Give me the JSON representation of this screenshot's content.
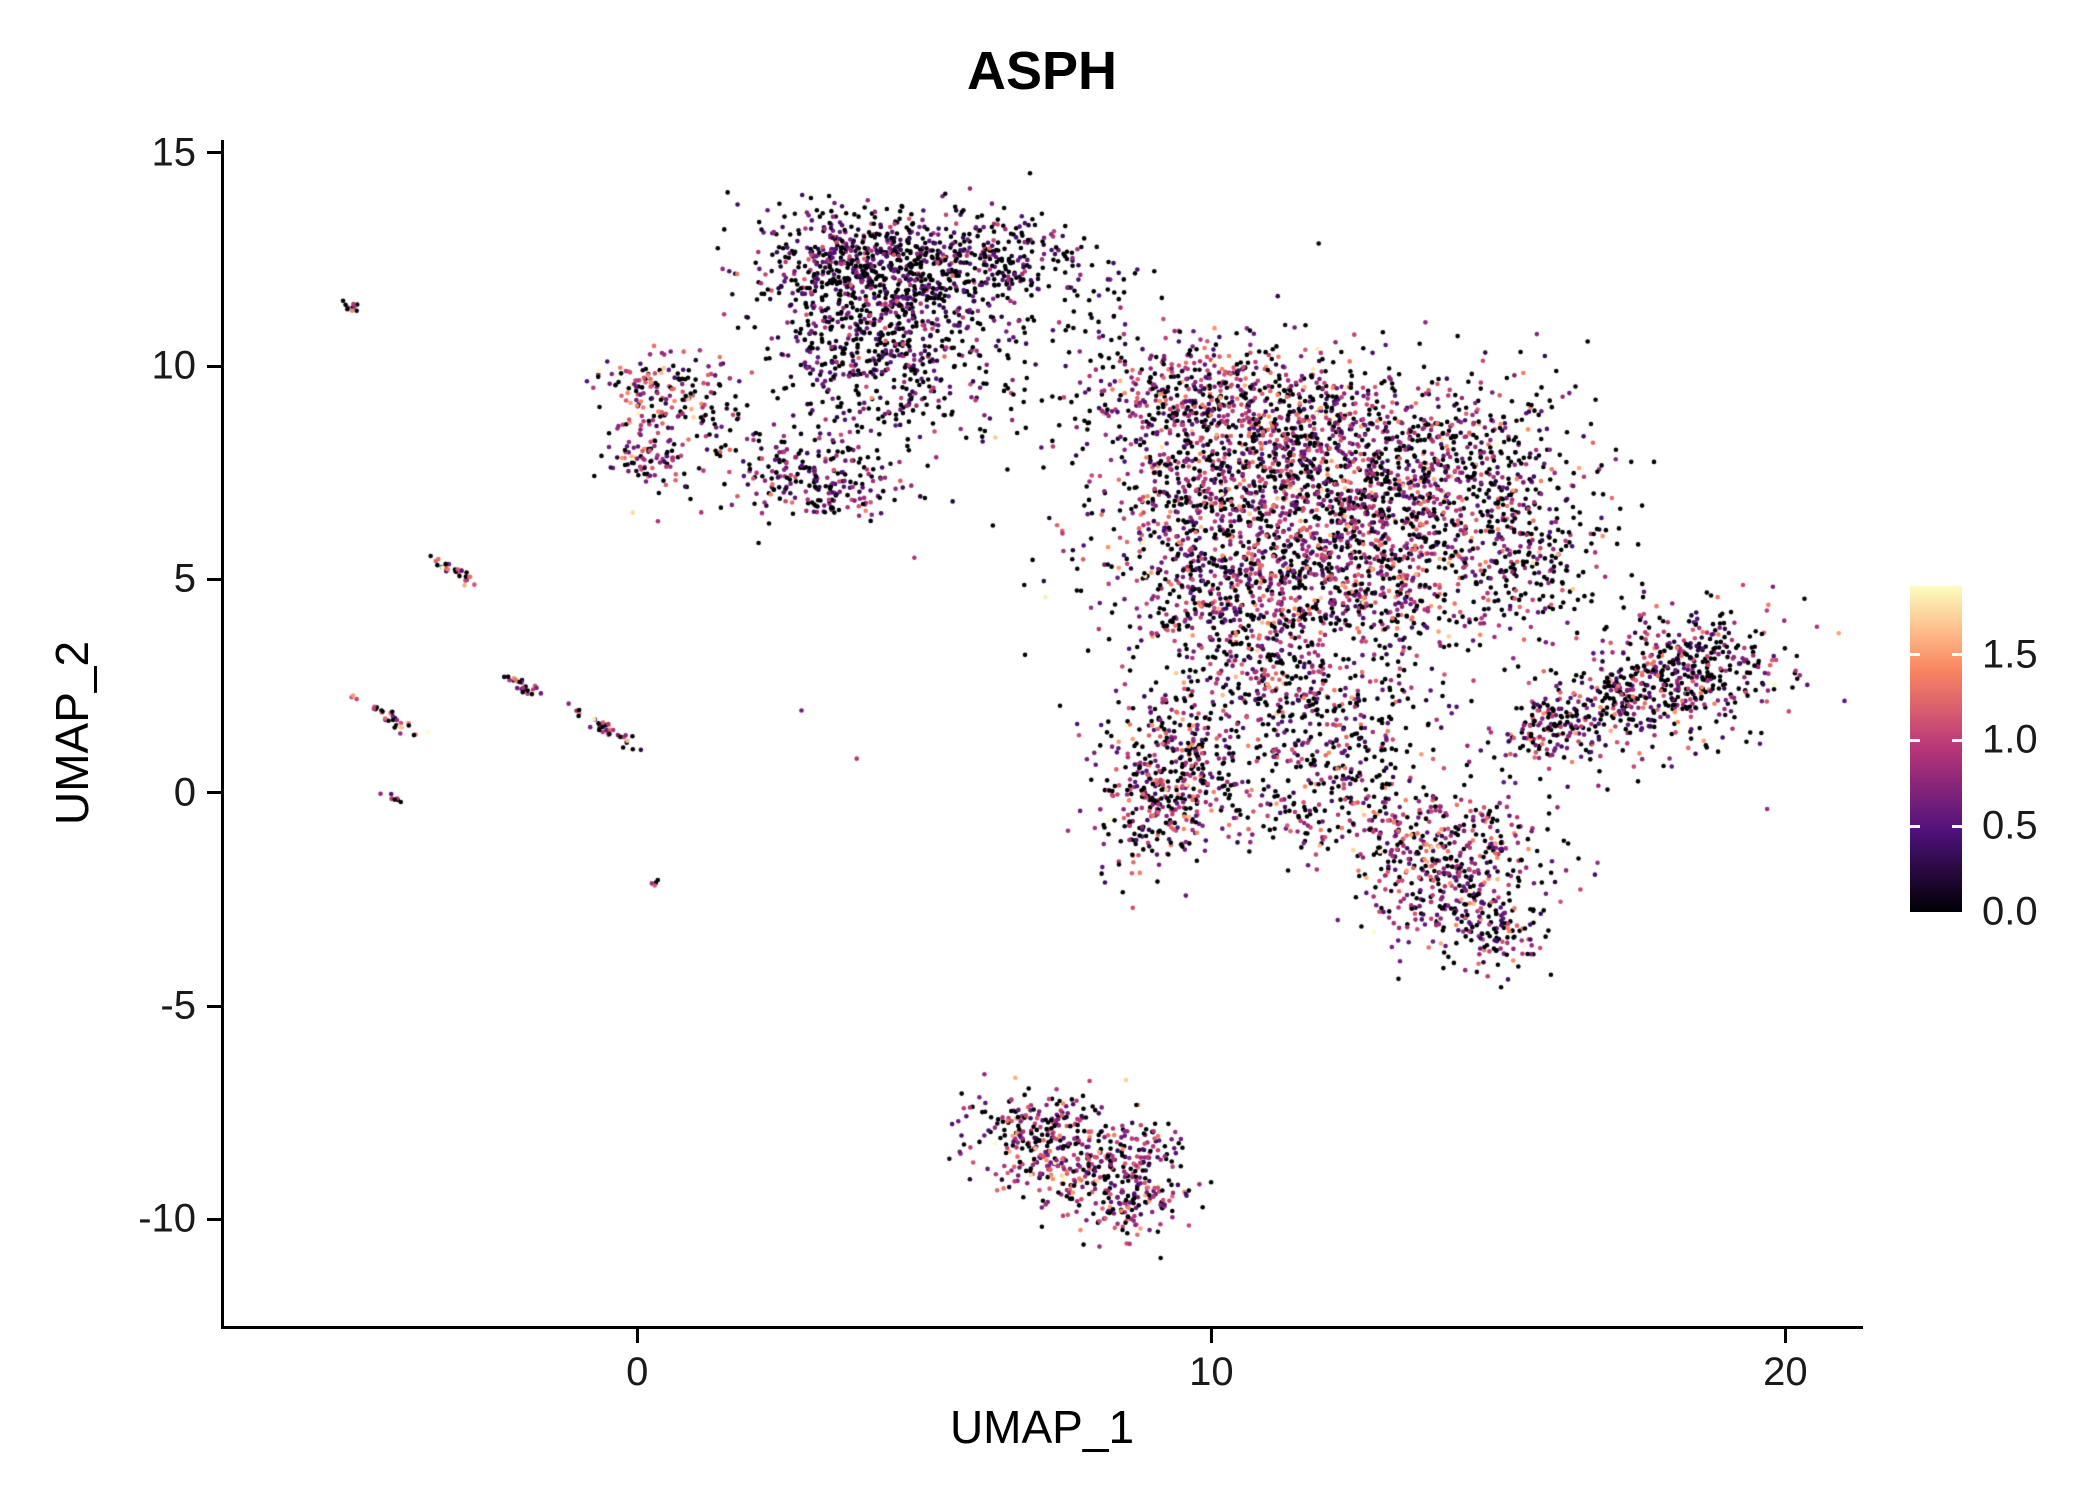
{
  "chart_data": {
    "type": "scatter",
    "title": "ASPH",
    "xlabel": "UMAP_1",
    "ylabel": "UMAP_2",
    "xlim": [
      -7.2,
      21.3
    ],
    "ylim": [
      -12.5,
      15.3
    ],
    "grid": false,
    "background": "#ffffff",
    "point_color_scheme": "magma",
    "x_ticks": [
      {
        "value": 0,
        "label": "0"
      },
      {
        "value": 10,
        "label": "10"
      },
      {
        "value": 20,
        "label": "20"
      }
    ],
    "y_ticks": [
      {
        "value": -10,
        "label": "-10"
      },
      {
        "value": -5,
        "label": "-5"
      },
      {
        "value": 0,
        "label": "0"
      },
      {
        "value": 5,
        "label": "5"
      },
      {
        "value": 10,
        "label": "10"
      },
      {
        "value": 15,
        "label": "15"
      }
    ],
    "colorbar": {
      "position": "right",
      "max": 1.9,
      "min": 0.0,
      "ticks": [
        {
          "value": 1.5,
          "label": "1.5"
        },
        {
          "value": 1.0,
          "label": "1.0"
        },
        {
          "value": 0.5,
          "label": "0.5"
        },
        {
          "value": 0.0,
          "label": "0.0"
        }
      ]
    },
    "colormap": {
      "name": "magma",
      "stops": [
        [
          0.0,
          "#000004"
        ],
        [
          0.25,
          "#50127b"
        ],
        [
          0.5,
          "#b63679"
        ],
        [
          0.75,
          "#fb8861"
        ],
        [
          1.0,
          "#fcfdbf"
        ]
      ]
    },
    "clusters": [
      {
        "name": "top-center-core",
        "cx": 4.2,
        "cy": 12.2,
        "sx": 1.15,
        "sy": 0.75,
        "rot": -8,
        "n": 850,
        "p0": 0.45,
        "mean": 0.55,
        "sd": 0.3
      },
      {
        "name": "top-center-lower",
        "cx": 4.0,
        "cy": 10.4,
        "sx": 0.8,
        "sy": 0.55,
        "rot": 0,
        "n": 260,
        "p0": 0.45,
        "mean": 0.55,
        "sd": 0.3
      },
      {
        "name": "top-center-trail",
        "cx": 5.3,
        "cy": 9.9,
        "sx": 1.0,
        "sy": 0.8,
        "rot": 0,
        "n": 110,
        "p0": 0.6,
        "mean": 0.5,
        "sd": 0.3
      },
      {
        "name": "top-center-right",
        "cx": 6.3,
        "cy": 12.6,
        "sx": 0.7,
        "sy": 0.5,
        "rot": 0,
        "n": 160,
        "p0": 0.5,
        "mean": 0.5,
        "sd": 0.3
      },
      {
        "name": "top-sparse-bridge",
        "cx": 7.8,
        "cy": 11.4,
        "sx": 0.6,
        "sy": 0.8,
        "rot": 0,
        "n": 70,
        "p0": 0.6,
        "mean": 0.5,
        "sd": 0.3
      },
      {
        "name": "top-below-sparse",
        "cx": 4.3,
        "cy": 8.9,
        "sx": 0.9,
        "sy": 0.6,
        "rot": 0,
        "n": 90,
        "p0": 0.55,
        "mean": 0.55,
        "sd": 0.3
      },
      {
        "name": "left-small-upper",
        "cx": 0.45,
        "cy": 9.5,
        "sx": 0.55,
        "sy": 0.45,
        "rot": 0,
        "n": 150,
        "p0": 0.3,
        "mean": 0.95,
        "sd": 0.42
      },
      {
        "name": "left-small-lower",
        "cx": 0.3,
        "cy": 7.9,
        "sx": 0.45,
        "sy": 0.5,
        "rot": 0,
        "n": 100,
        "p0": 0.32,
        "mean": 0.9,
        "sd": 0.4
      },
      {
        "name": "left-small-bridge",
        "cx": 1.5,
        "cy": 8.8,
        "sx": 0.5,
        "sy": 0.6,
        "rot": 0,
        "n": 35,
        "p0": 0.55,
        "mean": 0.7,
        "sd": 0.35
      },
      {
        "name": "mid-small",
        "cx": 3.1,
        "cy": 7.3,
        "sx": 0.8,
        "sy": 0.5,
        "rot": -15,
        "n": 240,
        "p0": 0.35,
        "mean": 0.7,
        "sd": 0.35
      },
      {
        "name": "main-upper-left",
        "cx": 9.6,
        "cy": 9.4,
        "sx": 0.9,
        "sy": 0.65,
        "rot": 0,
        "n": 320,
        "p0": 0.35,
        "mean": 0.85,
        "sd": 0.4
      },
      {
        "name": "main-upper",
        "cx": 11.4,
        "cy": 8.6,
        "sx": 1.4,
        "sy": 0.9,
        "rot": 0,
        "n": 650,
        "p0": 0.35,
        "mean": 0.85,
        "sd": 0.4
      },
      {
        "name": "main-center-left",
        "cx": 10.4,
        "cy": 6.6,
        "sx": 1.3,
        "sy": 1.1,
        "rot": 0,
        "n": 700,
        "p0": 0.35,
        "mean": 0.85,
        "sd": 0.4
      },
      {
        "name": "main-center-right",
        "cx": 13.0,
        "cy": 6.6,
        "sx": 1.2,
        "sy": 1.1,
        "rot": 0,
        "n": 650,
        "p0": 0.35,
        "mean": 0.85,
        "sd": 0.4
      },
      {
        "name": "main-lower-mid",
        "cx": 12.4,
        "cy": 4.6,
        "sx": 1.4,
        "sy": 0.9,
        "rot": 0,
        "n": 450,
        "p0": 0.35,
        "mean": 0.85,
        "sd": 0.4
      },
      {
        "name": "main-lower-left",
        "cx": 10.1,
        "cy": 4.4,
        "sx": 0.85,
        "sy": 0.8,
        "rot": 0,
        "n": 240,
        "p0": 0.35,
        "mean": 0.85,
        "sd": 0.4
      },
      {
        "name": "main-right-bulge",
        "cx": 14.7,
        "cy": 7.9,
        "sx": 0.85,
        "sy": 0.95,
        "rot": 0,
        "n": 280,
        "p0": 0.45,
        "mean": 0.8,
        "sd": 0.4
      },
      {
        "name": "main-right-edge",
        "cx": 15.6,
        "cy": 5.6,
        "sx": 0.6,
        "sy": 0.9,
        "rot": 0,
        "n": 170,
        "p0": 0.5,
        "mean": 0.75,
        "sd": 0.4
      },
      {
        "name": "main-descender",
        "cx": 11.1,
        "cy": 2.6,
        "sx": 0.8,
        "sy": 0.85,
        "rot": 0,
        "n": 230,
        "p0": 0.35,
        "mean": 0.85,
        "sd": 0.4
      },
      {
        "name": "main-low-left-1",
        "cx": 9.4,
        "cy": 0.9,
        "sx": 0.65,
        "sy": 0.9,
        "rot": 0,
        "n": 260,
        "p0": 0.35,
        "mean": 0.85,
        "sd": 0.4
      },
      {
        "name": "main-low-left-2",
        "cx": 9.0,
        "cy": -0.4,
        "sx": 0.6,
        "sy": 0.75,
        "rot": 0,
        "n": 210,
        "p0": 0.35,
        "mean": 0.85,
        "sd": 0.4
      },
      {
        "name": "main-low-mid",
        "cx": 12.4,
        "cy": 1.3,
        "sx": 0.8,
        "sy": 0.8,
        "rot": 0,
        "n": 180,
        "p0": 0.5,
        "mean": 0.8,
        "sd": 0.4
      },
      {
        "name": "main-low-right-1",
        "cx": 13.8,
        "cy": -0.9,
        "sx": 0.9,
        "sy": 0.65,
        "rot": 0,
        "n": 290,
        "p0": 0.35,
        "mean": 0.85,
        "sd": 0.4
      },
      {
        "name": "main-low-right-2",
        "cx": 14.3,
        "cy": -2.3,
        "sx": 0.75,
        "sy": 0.7,
        "rot": 0,
        "n": 260,
        "p0": 0.35,
        "mean": 0.85,
        "sd": 0.4
      },
      {
        "name": "main-low-tail",
        "cx": 15.0,
        "cy": -3.3,
        "sx": 0.45,
        "sy": 0.45,
        "rot": 0,
        "n": 90,
        "p0": 0.4,
        "mean": 0.8,
        "sd": 0.4
      },
      {
        "name": "main-halo",
        "cx": 12.2,
        "cy": 4.8,
        "sx": 3.1,
        "sy": 3.0,
        "rot": 0,
        "n": 280,
        "p0": 0.68,
        "mean": 0.55,
        "sd": 0.35
      },
      {
        "name": "main-low-bridge",
        "cx": 11.3,
        "cy": -0.3,
        "sx": 0.7,
        "sy": 0.55,
        "rot": 0,
        "n": 110,
        "p0": 0.45,
        "mean": 0.8,
        "sd": 0.4
      },
      {
        "name": "wing-tip",
        "cx": 15.8,
        "cy": 1.4,
        "sx": 0.5,
        "sy": 0.35,
        "rot": 28,
        "n": 90,
        "p0": 0.42,
        "mean": 0.8,
        "sd": 0.4
      },
      {
        "name": "wing-mid",
        "cx": 17.0,
        "cy": 2.1,
        "sx": 0.85,
        "sy": 0.5,
        "rot": 28,
        "n": 240,
        "p0": 0.42,
        "mean": 0.8,
        "sd": 0.4
      },
      {
        "name": "wing-wide",
        "cx": 18.5,
        "cy": 2.9,
        "sx": 0.8,
        "sy": 0.75,
        "rot": 25,
        "n": 330,
        "p0": 0.42,
        "mean": 0.8,
        "sd": 0.4
      },
      {
        "name": "wing-halo",
        "cx": 17.3,
        "cy": 2.4,
        "sx": 1.6,
        "sy": 0.9,
        "rot": 28,
        "n": 80,
        "p0": 0.7,
        "mean": 0.5,
        "sd": 0.35
      },
      {
        "name": "bottom-upper",
        "cx": 7.0,
        "cy": -7.9,
        "sx": 0.7,
        "sy": 0.5,
        "rot": -10,
        "n": 200,
        "p0": 0.3,
        "mean": 0.9,
        "sd": 0.4
      },
      {
        "name": "bottom-mid",
        "cx": 7.9,
        "cy": -8.8,
        "sx": 0.8,
        "sy": 0.6,
        "rot": -15,
        "n": 280,
        "p0": 0.3,
        "mean": 0.9,
        "sd": 0.4
      },
      {
        "name": "bottom-tip",
        "cx": 8.6,
        "cy": -9.7,
        "sx": 0.45,
        "sy": 0.4,
        "rot": 0,
        "n": 90,
        "p0": 0.3,
        "mean": 0.9,
        "sd": 0.4
      },
      {
        "name": "bottom-right-tip",
        "cx": 9.0,
        "cy": -8.3,
        "sx": 0.3,
        "sy": 0.3,
        "rot": 0,
        "n": 40,
        "p0": 0.35,
        "mean": 0.85,
        "sd": 0.4
      },
      {
        "name": "streak-1",
        "cx": -5.0,
        "cy": 11.4,
        "sx": 0.12,
        "sy": 0.05,
        "rot": -38,
        "n": 10,
        "p0": 0.3,
        "mean": 1.0,
        "sd": 0.45
      },
      {
        "name": "streak-2",
        "cx": -3.2,
        "cy": 5.2,
        "sx": 0.28,
        "sy": 0.06,
        "rot": -38,
        "n": 30,
        "p0": 0.3,
        "mean": 1.0,
        "sd": 0.45
      },
      {
        "name": "streak-3",
        "cx": -2.0,
        "cy": 2.5,
        "sx": 0.24,
        "sy": 0.06,
        "rot": -38,
        "n": 26,
        "p0": 0.3,
        "mean": 1.0,
        "sd": 0.45
      },
      {
        "name": "streak-4",
        "cx": -4.35,
        "cy": 1.8,
        "sx": 0.3,
        "sy": 0.06,
        "rot": -38,
        "n": 32,
        "p0": 0.3,
        "mean": 1.0,
        "sd": 0.45
      },
      {
        "name": "streak-5",
        "cx": -0.55,
        "cy": 1.5,
        "sx": 0.32,
        "sy": 0.06,
        "rot": -38,
        "n": 36,
        "p0": 0.3,
        "mean": 1.0,
        "sd": 0.45
      },
      {
        "name": "streak-6",
        "cx": -4.3,
        "cy": -0.1,
        "sx": 0.1,
        "sy": 0.05,
        "rot": -38,
        "n": 8,
        "p0": 0.3,
        "mean": 1.0,
        "sd": 0.45
      },
      {
        "name": "streak-7",
        "cx": 0.3,
        "cy": -2.1,
        "sx": 0.06,
        "sy": 0.04,
        "rot": -38,
        "n": 4,
        "p0": 0.3,
        "mean": 1.0,
        "sd": 0.45
      }
    ]
  }
}
